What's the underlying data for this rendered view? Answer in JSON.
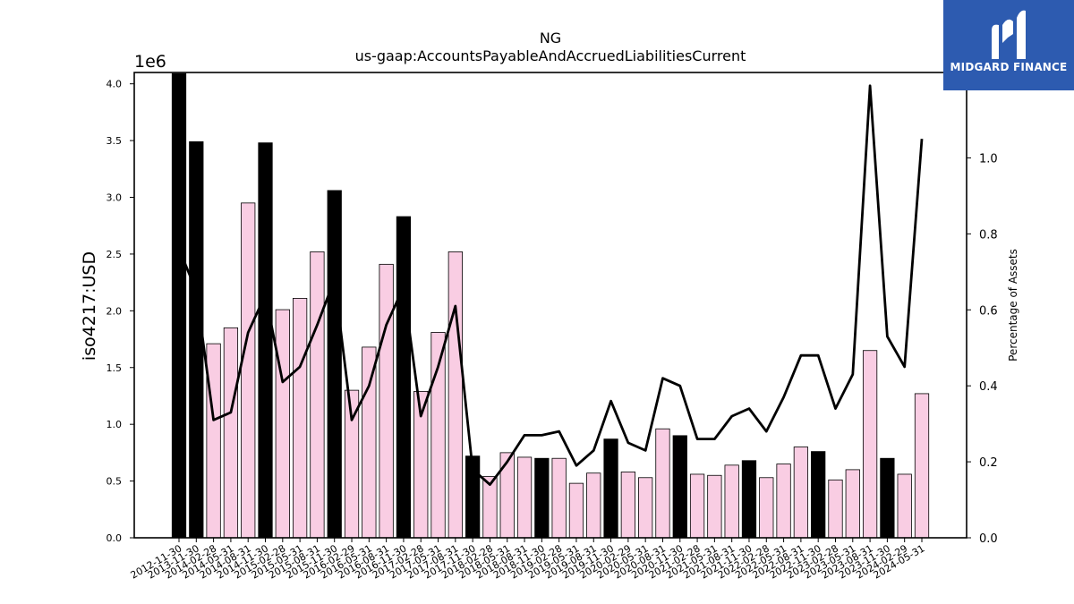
{
  "chart_data": {
    "type": "bar",
    "title": "NG",
    "subtitle": "us-gaap:AccountsPayableAndAccruedLiabilitiesCurrent",
    "ylabel": "iso4217:USD",
    "y2label": "Percentage of Assets",
    "offset_label": "1e6",
    "ylim": [
      0,
      4.1
    ],
    "y2lim": [
      0,
      1.2248
    ],
    "yticks": [
      "0.0",
      "0.5",
      "1.0",
      "1.5",
      "2.0",
      "2.5",
      "3.0",
      "3.5",
      "4.0"
    ],
    "y2ticks": [
      "0.0",
      "0.2",
      "0.4",
      "0.6",
      "0.8",
      "1.0"
    ],
    "grid": false,
    "colors": {
      "bar_q4": "#000000",
      "bar_other": "#f9cde3",
      "line": "#000000"
    },
    "categories": [
      "2012-11-30",
      "2013-11-30",
      "2014-02-28",
      "2014-05-31",
      "2014-08-31",
      "2014-11-30",
      "2015-02-28",
      "2015-05-31",
      "2015-08-31",
      "2015-11-30",
      "2016-02-29",
      "2016-05-31",
      "2016-08-31",
      "2016-11-30",
      "2017-02-28",
      "2017-05-31",
      "2017-08-31",
      "2017-11-30",
      "2018-02-28",
      "2018-05-31",
      "2018-08-31",
      "2018-11-30",
      "2019-02-28",
      "2019-05-31",
      "2019-08-31",
      "2019-11-30",
      "2020-02-29",
      "2020-05-31",
      "2020-08-31",
      "2020-11-30",
      "2021-02-28",
      "2021-05-31",
      "2021-08-31",
      "2021-11-30",
      "2022-02-28",
      "2022-05-31",
      "2022-08-31",
      "2022-11-30",
      "2023-02-28",
      "2023-05-31",
      "2023-08-31",
      "2023-11-30",
      "2024-02-29",
      "2024-05-31"
    ],
    "series": [
      {
        "values": [
          4.09,
          3.49,
          1.71,
          1.85,
          2.95,
          3.48,
          2.01,
          2.11,
          2.52,
          3.06,
          1.3,
          1.68,
          2.41,
          2.83,
          1.29,
          1.81,
          2.52,
          0.72,
          0.54,
          0.75,
          0.71,
          0.7,
          0.7,
          0.48,
          0.57,
          0.87,
          0.58,
          0.53,
          0.96,
          0.9,
          0.56,
          0.55,
          0.64,
          0.68,
          0.53,
          0.65,
          0.8,
          0.76,
          0.51,
          0.6,
          1.65,
          0.7,
          0.56,
          1.27
        ],
        "highlight": [
          true,
          true,
          false,
          false,
          false,
          true,
          false,
          false,
          false,
          true,
          false,
          false,
          false,
          true,
          false,
          false,
          false,
          true,
          false,
          false,
          false,
          true,
          false,
          false,
          false,
          true,
          false,
          false,
          false,
          true,
          false,
          false,
          false,
          true,
          false,
          false,
          false,
          true,
          false,
          false,
          false,
          true,
          false,
          false
        ]
      },
      {
        "values": [
          0.76,
          0.65,
          0.31,
          0.33,
          0.54,
          0.64,
          0.41,
          0.45,
          0.56,
          0.68,
          0.31,
          0.4,
          0.56,
          0.66,
          0.32,
          0.45,
          0.61,
          0.18,
          0.14,
          0.2,
          0.27,
          0.27,
          0.28,
          0.19,
          0.23,
          0.36,
          0.25,
          0.23,
          0.42,
          0.4,
          0.26,
          0.26,
          0.32,
          0.34,
          0.28,
          0.37,
          0.48,
          0.48,
          0.34,
          0.43,
          1.19,
          0.53,
          0.45,
          1.05
        ]
      }
    ]
  },
  "logo": {
    "text": "MIDGARD FINANCE",
    "icon": "midgard-logo-icon"
  }
}
